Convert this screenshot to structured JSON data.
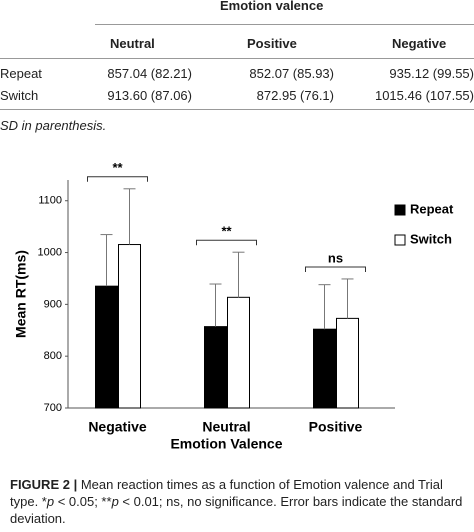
{
  "table": {
    "header": "Emotion valence",
    "columns": [
      "Neutral",
      "Positive",
      "Negative"
    ],
    "rows": [
      [
        "Repeat",
        "857.04 (82.21)",
        "852.07 (85.93)",
        "935.12 (99.55)"
      ],
      [
        "Switch",
        "913.60 (87.06)",
        "872.95 (76.1)",
        "1015.46 (107.55)"
      ]
    ],
    "note": "SD in parenthesis."
  },
  "chart_data": {
    "type": "bar",
    "xlabel": "Emotion Valence",
    "ylabel": "Mean RT(ms)",
    "categories": [
      "Negative",
      "Neutral",
      "Positive"
    ],
    "series": [
      {
        "name": "Repeat",
        "color": "#000000",
        "values": [
          935.12,
          857.04,
          852.07
        ],
        "errors": [
          99.55,
          82.21,
          85.93
        ]
      },
      {
        "name": "Switch",
        "color": "#ffffff",
        "values": [
          1015.46,
          913.6,
          872.95
        ],
        "errors": [
          107.55,
          87.06,
          76.1
        ]
      }
    ],
    "significance": [
      "**",
      "**",
      "ns"
    ],
    "ylim": [
      700,
      1140
    ],
    "yticks": [
      700,
      800,
      900,
      1000,
      1100
    ],
    "legend": "right"
  },
  "caption": [
    {
      "text": "FIGURE 2 |",
      "bold": true
    },
    {
      "text": " Mean reaction times as a function of Emotion valence and Trial type. *"
    },
    {
      "text": "p",
      "italic": true
    },
    {
      "text": " < 0.05; **"
    },
    {
      "text": "p",
      "italic": true
    },
    {
      "text": " < 0.01; ns, no significance. Error bars indicate the standard deviation."
    }
  ]
}
